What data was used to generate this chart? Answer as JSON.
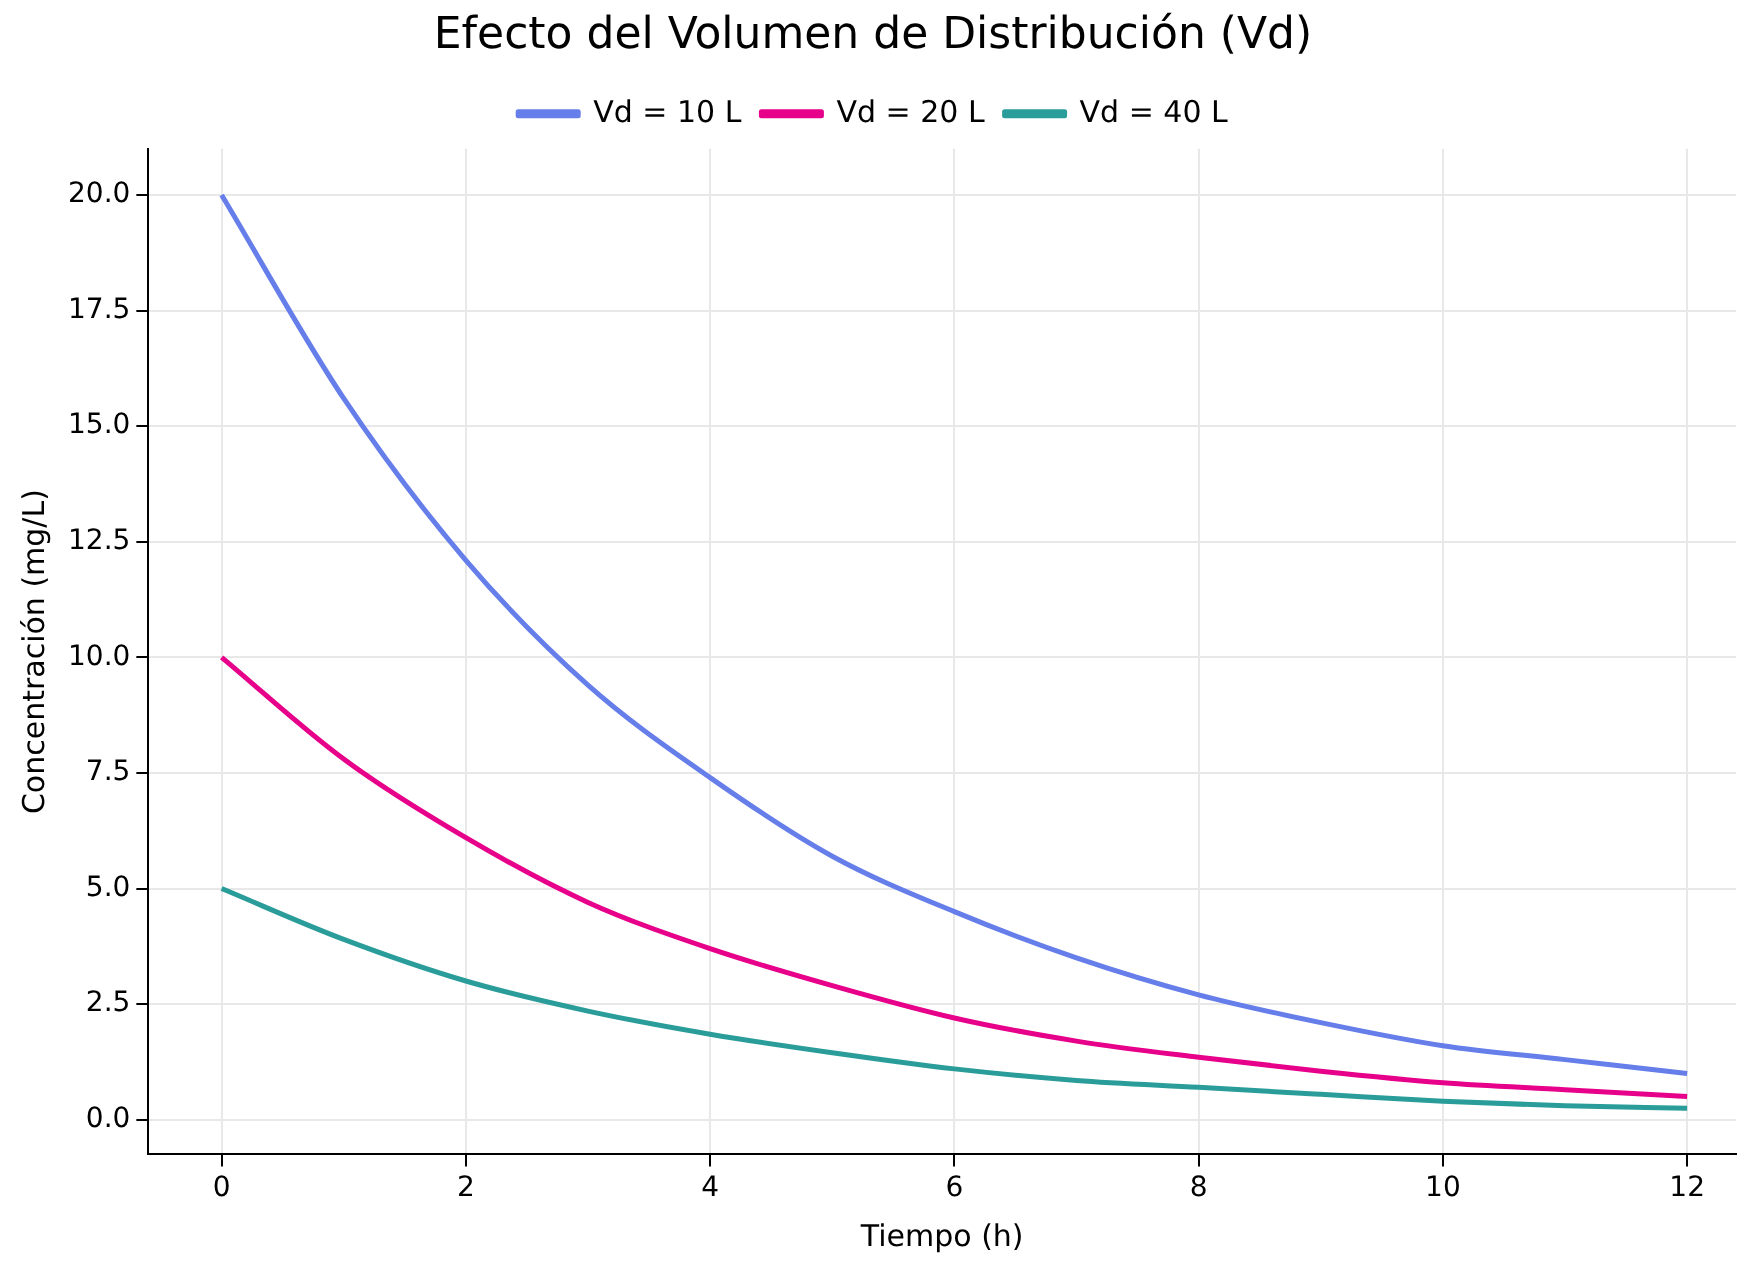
{
  "chart_data": {
    "type": "line",
    "title": "Efecto del Volumen de Distribución (Vd)",
    "xlabel": "Tiempo (h)",
    "ylabel": "Concentración (mg/L)",
    "x": [
      0,
      1,
      2,
      3,
      4,
      5,
      6,
      7,
      8,
      9,
      10,
      11,
      12
    ],
    "series": [
      {
        "name": "Vd = 10 L",
        "color": "#667eea",
        "values": [
          20,
          15.6,
          12.1,
          9.4,
          7.4,
          5.7,
          4.5,
          3.5,
          2.7,
          2.1,
          1.6,
          1.3,
          1.0
        ]
      },
      {
        "name": "Vd = 20 L",
        "color": "#e6008a",
        "values": [
          10,
          7.8,
          6.1,
          4.7,
          3.7,
          2.9,
          2.2,
          1.7,
          1.35,
          1.05,
          0.8,
          0.65,
          0.5
        ]
      },
      {
        "name": "Vd = 40 L",
        "color": "#2a9d9a",
        "values": [
          5,
          3.9,
          3.0,
          2.35,
          1.85,
          1.45,
          1.1,
          0.85,
          0.7,
          0.55,
          0.4,
          0.3,
          0.25
        ]
      }
    ],
    "xlim": [
      -0.6,
      12.4
    ],
    "xticks": [
      0,
      2,
      4,
      6,
      8,
      10,
      12
    ],
    "ylim": [
      -0.75,
      21
    ],
    "yticks": [
      {
        "value": 0,
        "label": "0.0"
      },
      {
        "value": 2.5,
        "label": "2.5"
      },
      {
        "value": 5,
        "label": "5.0"
      },
      {
        "value": 7.5,
        "label": "7.5"
      },
      {
        "value": 10,
        "label": "10.0"
      },
      {
        "value": 12.5,
        "label": "12.5"
      },
      {
        "value": 15,
        "label": "15.0"
      },
      {
        "value": 17.5,
        "label": "17.5"
      },
      {
        "value": 20,
        "label": "20.0"
      }
    ],
    "grid": true,
    "legend": "top",
    "marker": "none",
    "line_style": "solid"
  }
}
